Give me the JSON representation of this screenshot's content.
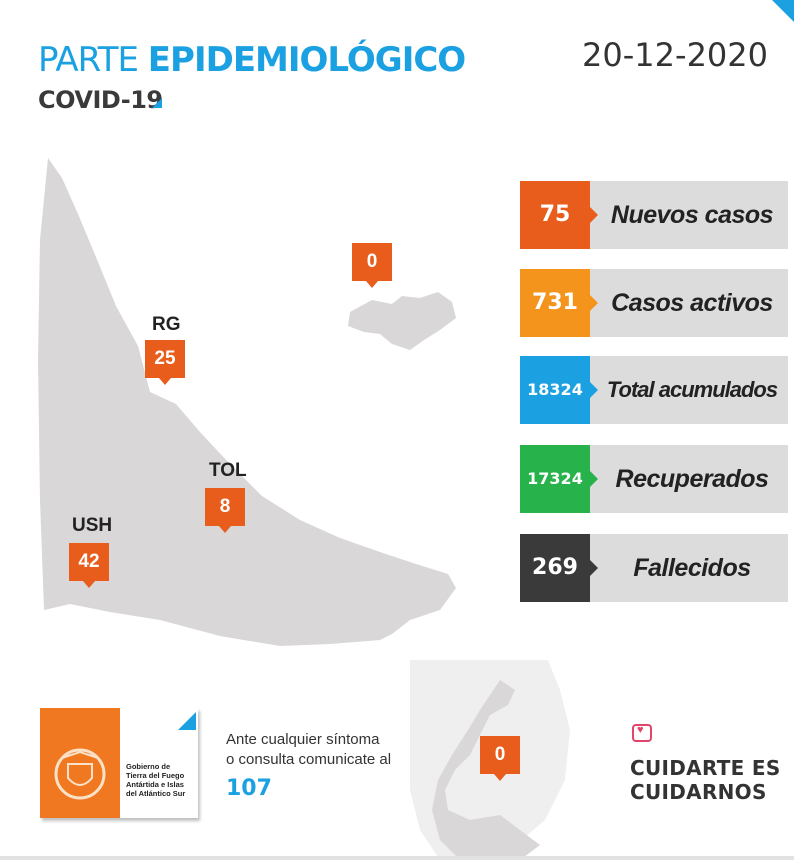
{
  "header": {
    "title_part1": "PARTE ",
    "title_part2": "EPIDEMIOLÓGICO",
    "subtitle": "COVID-19",
    "date": "20-12-2020"
  },
  "map_pins": [
    {
      "label": "",
      "value": "0"
    },
    {
      "label": "RG",
      "value": "25"
    },
    {
      "label": "TOL",
      "value": "8"
    },
    {
      "label": "USH",
      "value": "42"
    },
    {
      "label": "",
      "value": "0"
    }
  ],
  "stats": [
    {
      "value": "75",
      "label": "Nuevos casos",
      "color": "#e85d1c"
    },
    {
      "value": "731",
      "label": "Casos activos",
      "color": "#f4941d"
    },
    {
      "value": "18324",
      "label": "Total acumulados",
      "color": "#1ba1e2"
    },
    {
      "value": "17324",
      "label": "Recuperados",
      "color": "#28b24b"
    },
    {
      "value": "269",
      "label": "Fallecidos",
      "color": "#3a3a3a"
    }
  ],
  "footer": {
    "logo_text_1": "Gobierno de",
    "logo_text_2": "Tierra del Fuego",
    "logo_text_3": "Antártida e Islas",
    "logo_text_4": "del Atlántico Sur",
    "contact_line1": "Ante cualquier síntoma",
    "contact_line2": "o consulta comunicate al",
    "phone": "107",
    "slogan_line1": "CUIDARTE ES",
    "slogan_line2": "CUIDARNOS"
  },
  "icons": {
    "heart": "heart-icon",
    "logo": "shield-logo-icon"
  },
  "colors": {
    "accent": "#1ba1e2",
    "pin": "#e85d1c",
    "map": "#d9d7d7"
  }
}
